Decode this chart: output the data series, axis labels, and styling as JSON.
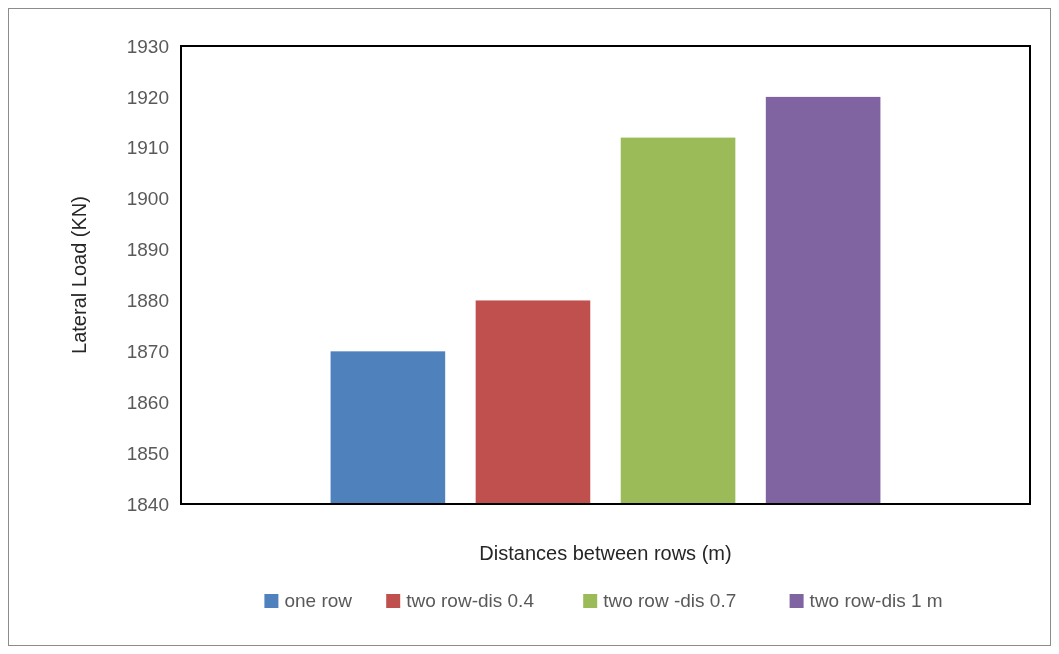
{
  "chart_data": {
    "type": "bar",
    "xlabel": "Distances between  rows (m)",
    "ylabel": "Lateral Load (KN)",
    "categories": [
      null
    ],
    "series": [
      {
        "name": "one row",
        "color": "#4f81bd",
        "values": [
          1870
        ]
      },
      {
        "name": "two row-dis 0.4",
        "color": "#c0504d",
        "values": [
          1880
        ]
      },
      {
        "name": "two row -dis 0.7",
        "color": "#9bbb59",
        "values": [
          1912
        ]
      },
      {
        "name": "two row-dis 1 m",
        "color": "#8064a2",
        "values": [
          1920
        ]
      }
    ],
    "ylim": [
      1840,
      1930
    ],
    "yticks": [
      1840,
      1850,
      1860,
      1870,
      1880,
      1890,
      1900,
      1910,
      1920,
      1930
    ],
    "grid": false,
    "legend": "bottom"
  }
}
